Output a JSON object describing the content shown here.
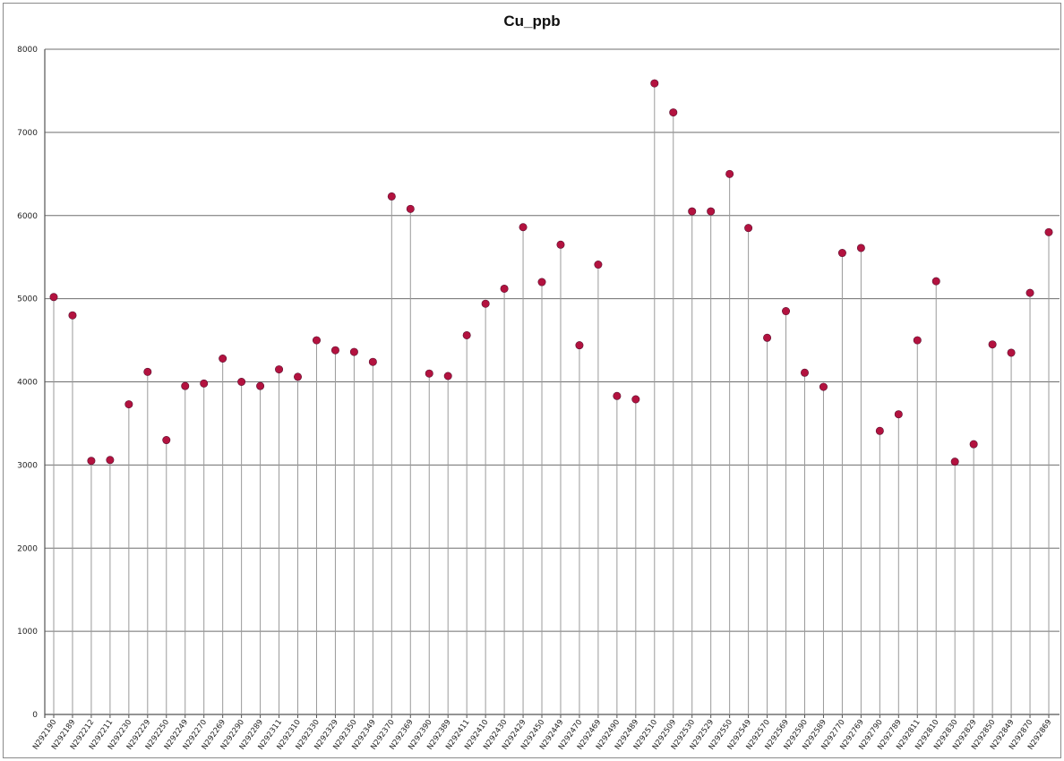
{
  "chart_data": {
    "type": "scatter",
    "title": "Cu_ppb",
    "xlabel": "",
    "ylabel": "",
    "ylim": [
      0,
      8000
    ],
    "yticks": [
      "0",
      "1000",
      "2000",
      "3000",
      "4000",
      "5000",
      "6000",
      "7000",
      "8000"
    ],
    "grid": "horizontal",
    "drop_lines": true,
    "marker_color": "#b3123f",
    "categories": [
      "N292190",
      "N292189",
      "N292212",
      "N292211",
      "N292230",
      "N292229",
      "N292250",
      "N292249",
      "N292270",
      "N292269",
      "N292290",
      "N292289",
      "N292311",
      "N292310",
      "N292330",
      "N292329",
      "N292350",
      "N292349",
      "N292370",
      "N292369",
      "N292390",
      "N292389",
      "N292411",
      "N292410",
      "N292430",
      "N292429",
      "N292450",
      "N292449",
      "N292470",
      "N292469",
      "N292490",
      "N292489",
      "N292510",
      "N292509",
      "N292530",
      "N292529",
      "N292550",
      "N292549",
      "N292570",
      "N292569",
      "N292590",
      "N292589",
      "N292770",
      "N292769",
      "N292790",
      "N292789",
      "N292811",
      "N292810",
      "N292830",
      "N292829",
      "N292850",
      "N292849",
      "N292870",
      "N292869"
    ],
    "values": [
      5020,
      4800,
      3050,
      3060,
      3730,
      4120,
      3300,
      3950,
      3980,
      4280,
      4000,
      3950,
      4150,
      4060,
      4500,
      4380,
      4360,
      4240,
      6230,
      6080,
      4100,
      4070,
      4560,
      4940,
      5120,
      5860,
      5200,
      5650,
      4440,
      5410,
      3830,
      3790,
      7590,
      7240,
      6050,
      6050,
      6500,
      5850,
      4530,
      4850,
      4110,
      3940,
      5550,
      5610,
      3410,
      3610,
      4500,
      5210,
      3040,
      3250,
      4450,
      4350,
      5070,
      5800
    ]
  }
}
